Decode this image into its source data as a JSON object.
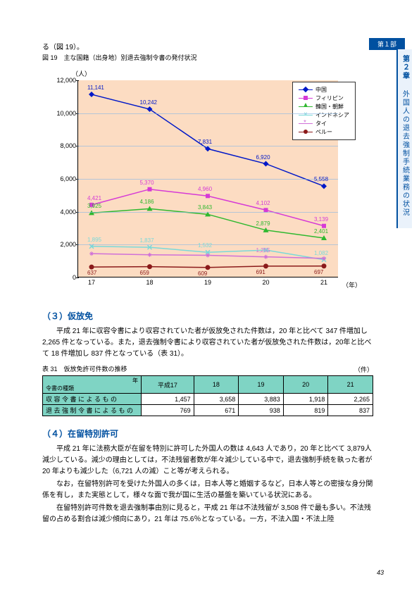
{
  "part_label": "第１部",
  "side": {
    "chapter": "第２章",
    "subtitle": "外国人の退去強制手続業務の状況"
  },
  "intro_text": "る（図 19）。",
  "fig_title": "図 19　主な国籍（出身地）別退去強制令書の発付状況",
  "chart": {
    "y_unit": "（人）",
    "x_unit": "（年）",
    "ylim_max": 12000,
    "ytick_step": 2000,
    "x_labels": [
      "17",
      "18",
      "19",
      "20",
      "21"
    ],
    "legend_bg": "#ffffff",
    "plot_bg": "#fcdcc2",
    "grid_color": "#86b6e4",
    "series": [
      {
        "name": "中国",
        "color": "#0018c8",
        "mark": "diamond",
        "values": [
          11141,
          10242,
          7831,
          6920,
          5558
        ]
      },
      {
        "name": "フィリピン",
        "color": "#d63ad6",
        "mark": "square",
        "values": [
          4421,
          5370,
          4960,
          4102,
          3139
        ]
      },
      {
        "name": "韓国・朝鮮",
        "color": "#2fb82f",
        "mark": "triangle",
        "values": [
          3925,
          4186,
          3843,
          2879,
          2401
        ]
      },
      {
        "name": "インドネシア",
        "color": "#7ad9d9",
        "mark": "x",
        "values": [
          1895,
          1837,
          1532,
          1668,
          1082
        ]
      },
      {
        "name": "タイ",
        "color": "#d070d8",
        "mark": "star",
        "values": [
          1450,
          1380,
          1350,
          1255,
          1160
        ]
      },
      {
        "name": "ペルー",
        "color": "#8b1a1a",
        "mark": "circle",
        "values": [
          637,
          659,
          609,
          691,
          697
        ]
      }
    ],
    "labeled_points": {
      "中国": [
        [
          "11,141",
          0
        ],
        [
          "10,242",
          1
        ],
        [
          "7,831",
          2
        ],
        [
          "6,920",
          3
        ],
        [
          "5,558",
          4
        ]
      ],
      "フィリピン": [
        [
          "4,421",
          0
        ],
        [
          "5,370",
          1
        ],
        [
          "4,960",
          2
        ],
        [
          "4,102",
          3
        ],
        [
          "3,139",
          4
        ]
      ],
      "韓国・朝鮮": [
        [
          "3,925",
          0
        ],
        [
          "4,186",
          1
        ],
        [
          "3,843",
          2
        ],
        [
          "2,879",
          3
        ],
        [
          "2,401",
          4
        ]
      ],
      "インドネシア": [
        [
          "1,895",
          0
        ],
        [
          "1,837",
          1
        ],
        [
          "1,532",
          2
        ],
        [
          null,
          3
        ],
        [
          "1,082",
          4
        ]
      ],
      "タイ": [
        [
          null,
          0
        ],
        [
          null,
          1
        ],
        [
          null,
          2
        ],
        [
          "1,255",
          3
        ],
        [
          null,
          4
        ]
      ],
      "ペルー": [
        [
          "637",
          0
        ],
        [
          "659",
          1
        ],
        [
          "609",
          2
        ],
        [
          "691",
          3
        ],
        [
          "697",
          4
        ]
      ]
    }
  },
  "section3": {
    "heading": "（３）仮放免",
    "para": "　平成 21 年に収容令書により収容されていた者が仮放免された件数は，20 年と比べて 347 件増加し 2,265 件となっている。また，退去強制令書により収容されていた者が仮放免された件数は，20年と比べて 18 件増加し 837 件となっている（表 31）。",
    "table_title": "表 31　仮放免許可件数の推移",
    "table_unit": "（件）",
    "cols_header": "令書の種類",
    "cols": [
      "平成17",
      "18",
      "19",
      "20",
      "21"
    ],
    "rows": [
      {
        "label": "収 容 令 書 に よ る も の",
        "cells": [
          "1,457",
          "3,658",
          "3,883",
          "1,918",
          "2,265"
        ]
      },
      {
        "label": "退 去 強 制 令 書 に よ る も の",
        "cells": [
          "769",
          "671",
          "938",
          "819",
          "837"
        ]
      }
    ],
    "header_bg": "#7fd4c4"
  },
  "section4": {
    "heading": "（４）在留特別許可",
    "paras": [
      "　平成 21 年に法務大臣が在留を特別に許可した外国人の数は 4,643 人であり，20 年と比べて 3,879人減少している。減少の理由としては，不法残留者数が年々減少している中で，退去強制手続を執った者が 20 年よりも減少した（6,721 人の減）こと等が考えられる。",
      "　なお，在留特別許可を受けた外国人の多くは，日本人等と婚姻するなど，日本人等との密接な身分関係を有し，また実態として，様々な面で我が国に生活の基盤を築いている状況にある。",
      "　在留特別許可件数を退去強制事由別に見ると，平成 21 年は不法残留が 3,508 件で最も多い。不法残留の占める割合は減少傾向にあり，21 年は 75.6％となっている。一方，不法入国・不法上陸"
    ]
  },
  "page_number": "43"
}
